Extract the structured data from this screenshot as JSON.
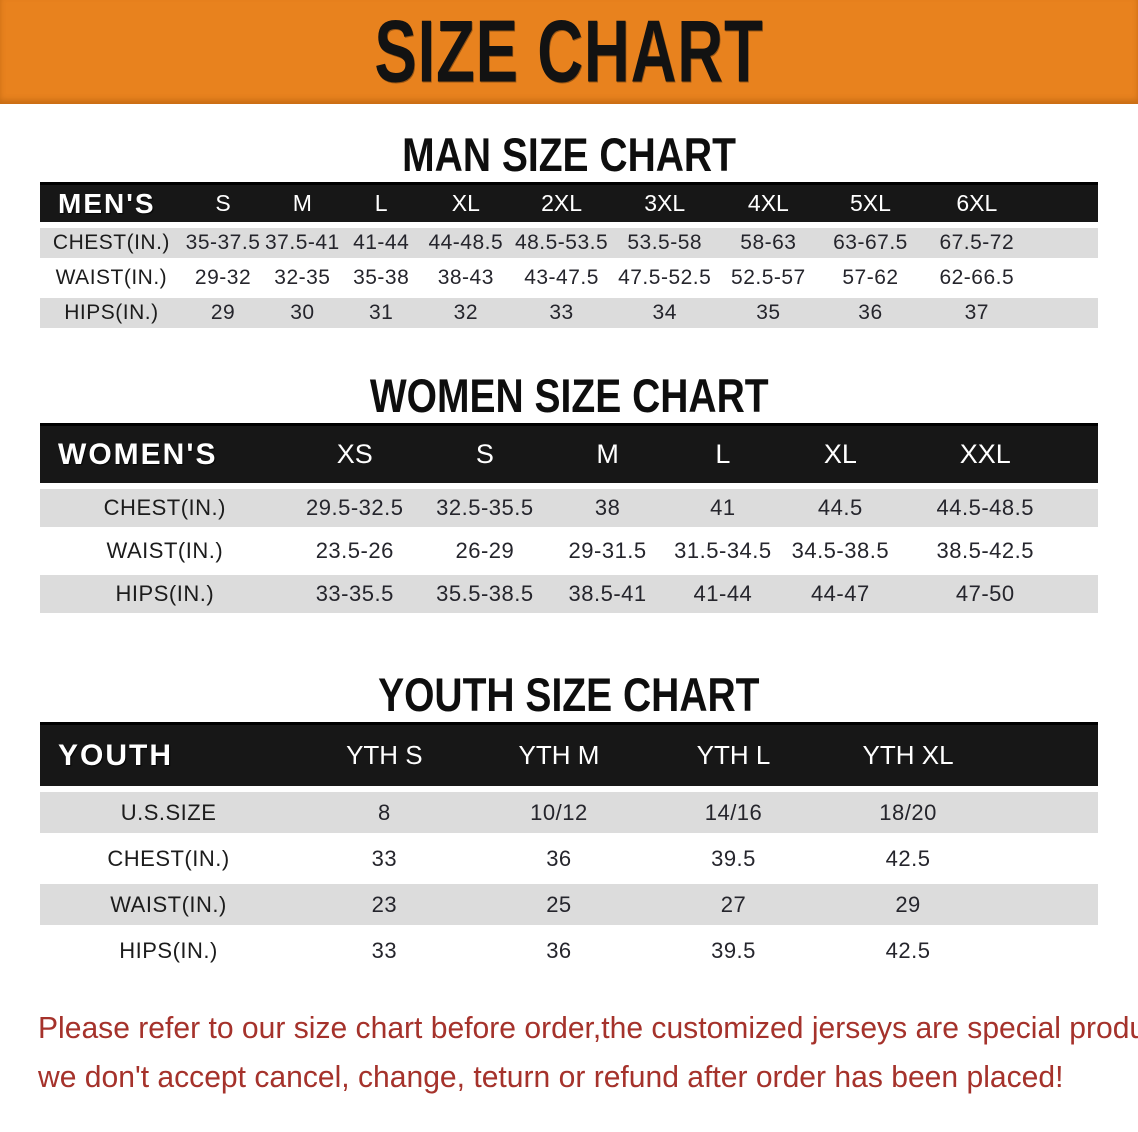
{
  "banner": {
    "title": "SIZE CHART"
  },
  "headings": {
    "men": "MAN SIZE CHART",
    "women": "WOMEN SIZE CHART",
    "youth": "YOUTH SIZE CHART"
  },
  "tables": {
    "men": {
      "label": "MEN'S",
      "sizes": [
        "S",
        "M",
        "L",
        "XL",
        "2XL",
        "3XL",
        "4XL",
        "5XL",
        "6XL"
      ],
      "rows": [
        {
          "label": "CHEST(IN.)",
          "values": [
            "35-37.5",
            "37.5-41",
            "41-44",
            "44-48.5",
            "48.5-53.5",
            "53.5-58",
            "58-63",
            "63-67.5",
            "67.5-72"
          ]
        },
        {
          "label": "WAIST(IN.)",
          "values": [
            "29-32",
            "32-35",
            "35-38",
            "38-43",
            "43-47.5",
            "47.5-52.5",
            "52.5-57",
            "57-62",
            "62-66.5"
          ]
        },
        {
          "label": "HIPS(IN.)",
          "values": [
            "29",
            "30",
            "31",
            "32",
            "33",
            "34",
            "35",
            "36",
            "37"
          ]
        }
      ]
    },
    "women": {
      "label": "WOMEN'S",
      "sizes": [
        "XS",
        "S",
        "M",
        "L",
        "XL",
        "XXL"
      ],
      "rows": [
        {
          "label": "CHEST(IN.)",
          "values": [
            "29.5-32.5",
            "32.5-35.5",
            "38",
            "41",
            "44.5",
            "44.5-48.5"
          ]
        },
        {
          "label": "WAIST(IN.)",
          "values": [
            "23.5-26",
            "26-29",
            "29-31.5",
            "31.5-34.5",
            "34.5-38.5",
            "38.5-42.5"
          ]
        },
        {
          "label": "HIPS(IN.)",
          "values": [
            "33-35.5",
            "35.5-38.5",
            "38.5-41",
            "41-44",
            "44-47",
            "47-50"
          ]
        }
      ]
    },
    "youth": {
      "label": "YOUTH",
      "sizes": [
        "YTH S",
        "YTH M",
        "YTH L",
        "YTH XL"
      ],
      "rows": [
        {
          "label": "U.S.SIZE",
          "values": [
            "8",
            "10/12",
            "14/16",
            "18/20"
          ]
        },
        {
          "label": "CHEST(IN.)",
          "values": [
            "33",
            "36",
            "39.5",
            "42.5"
          ]
        },
        {
          "label": "WAIST(IN.)",
          "values": [
            "23",
            "25",
            "27",
            "29"
          ]
        },
        {
          "label": "HIPS(IN.)",
          "values": [
            "33",
            "36",
            "39.5",
            "42.5"
          ]
        }
      ]
    }
  },
  "disclaimer": {
    "line1": "Please refer to our size chart before order,the customized jerseys are special products,",
    "line2": "we don't accept cancel, change, teturn or refund after order has been placed!"
  },
  "colors": {
    "banner_orange": "#E8821E",
    "header_black": "#171717",
    "row_gray": "#dcdcdc",
    "disclaimer_red": "#A5322B"
  }
}
